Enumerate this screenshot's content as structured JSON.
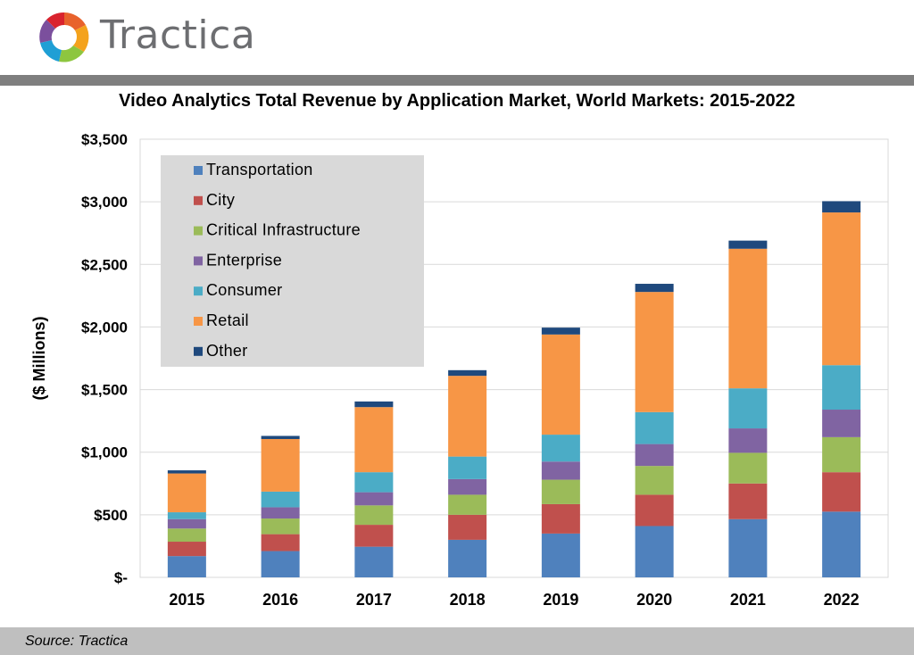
{
  "brand": {
    "name": "Tractica"
  },
  "source": "Source: Tractica",
  "colors": {
    "header_bar": "#7f7f7f",
    "footer_bar": "#bfbfbf",
    "legend_bg": "#d9d9d9",
    "grid": "#d9d9d9"
  },
  "chart_data": {
    "type": "bar",
    "stacked": true,
    "title": "Video Analytics Total Revenue by Application Market, World Markets: 2015-2022",
    "ylabel": "($ Millions)",
    "xlabel": "",
    "ylim": [
      0,
      3500
    ],
    "yticks": [
      0,
      500,
      1000,
      1500,
      2000,
      2500,
      3000,
      3500
    ],
    "ytick_labels": [
      "$-",
      "$500",
      "$1,000",
      "$1,500",
      "$2,000",
      "$2,500",
      "$3,000",
      "$3,500"
    ],
    "grid": true,
    "legend_position": "top-left",
    "categories": [
      "2015",
      "2016",
      "2017",
      "2018",
      "2019",
      "2020",
      "2021",
      "2022"
    ],
    "series": [
      {
        "name": "Transportation",
        "color": "#4f81bd",
        "values": [
          170,
          210,
          245,
          300,
          350,
          410,
          465,
          525
        ]
      },
      {
        "name": "City",
        "color": "#c0504d",
        "values": [
          115,
          135,
          175,
          200,
          235,
          250,
          285,
          315
        ]
      },
      {
        "name": "Critical Infrastructure",
        "color": "#9bbb59",
        "values": [
          105,
          125,
          155,
          160,
          195,
          230,
          245,
          280
        ]
      },
      {
        "name": "Enterprise",
        "color": "#8064a2",
        "values": [
          75,
          90,
          105,
          125,
          145,
          175,
          195,
          220
        ]
      },
      {
        "name": "Consumer",
        "color": "#4bacc6",
        "values": [
          55,
          125,
          160,
          180,
          215,
          255,
          320,
          355
        ]
      },
      {
        "name": "Retail",
        "color": "#f79646",
        "values": [
          310,
          420,
          520,
          645,
          800,
          960,
          1115,
          1220
        ]
      },
      {
        "name": "Other",
        "color": "#1f497d",
        "values": [
          25,
          25,
          45,
          45,
          55,
          65,
          65,
          90
        ]
      }
    ]
  }
}
